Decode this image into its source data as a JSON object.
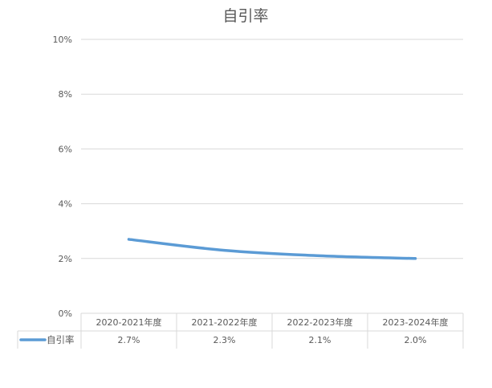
{
  "chart_data": {
    "type": "line",
    "title": "自引率",
    "categories": [
      "2020-2021年度",
      "2021-2022年度",
      "2022-2023年度",
      "2023-2024年度"
    ],
    "series": [
      {
        "name": "自引率",
        "values": [
          2.7,
          2.3,
          2.1,
          2.0
        ],
        "labels": [
          "2.7%",
          "2.3%",
          "2.1%",
          "2.0%"
        ],
        "color": "#5B9BD5"
      }
    ],
    "ylim": [
      0,
      10
    ],
    "yticks": [
      0,
      2,
      4,
      6,
      8,
      10
    ],
    "ytick_labels": [
      "0%",
      "2%",
      "4%",
      "6%",
      "8%",
      "10%"
    ],
    "grid": true,
    "legend": "data-table",
    "colors": {
      "grid": "#D9D9D9",
      "text": "#595959",
      "title": "#595959"
    }
  }
}
